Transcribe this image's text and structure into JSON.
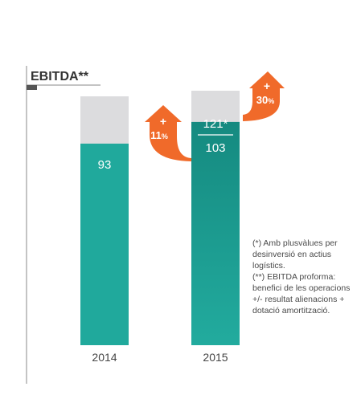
{
  "chart_data": {
    "type": "bar",
    "title": "EBITDA**",
    "categories": [
      "2014",
      "2015"
    ],
    "series": [
      {
        "values": [
          93,
          103
        ]
      }
    ],
    "bar_labels": [
      "93",
      "103"
    ],
    "proforma_label": "121*",
    "ylim": [
      0,
      130
    ],
    "grid": false,
    "colors": {
      "bar": "#20a99c",
      "bar_dark": "#158a80",
      "background_bar": "#dcdcde",
      "arrow": "#f06a2a",
      "axis": "#8a8a8a",
      "text": "#333333"
    },
    "annotations": [
      {
        "plus": "+",
        "value": "11",
        "unit": "%"
      },
      {
        "plus": "+",
        "value": "30",
        "unit": "%"
      }
    ]
  },
  "notes": [
    "(*) Amb plusvàlues per",
    "desinversió en actius",
    "logístics.",
    "(**) EBITDA proforma:",
    "benefici de les operacions",
    "+/- resultat alienacions +",
    "dotació amortització."
  ]
}
